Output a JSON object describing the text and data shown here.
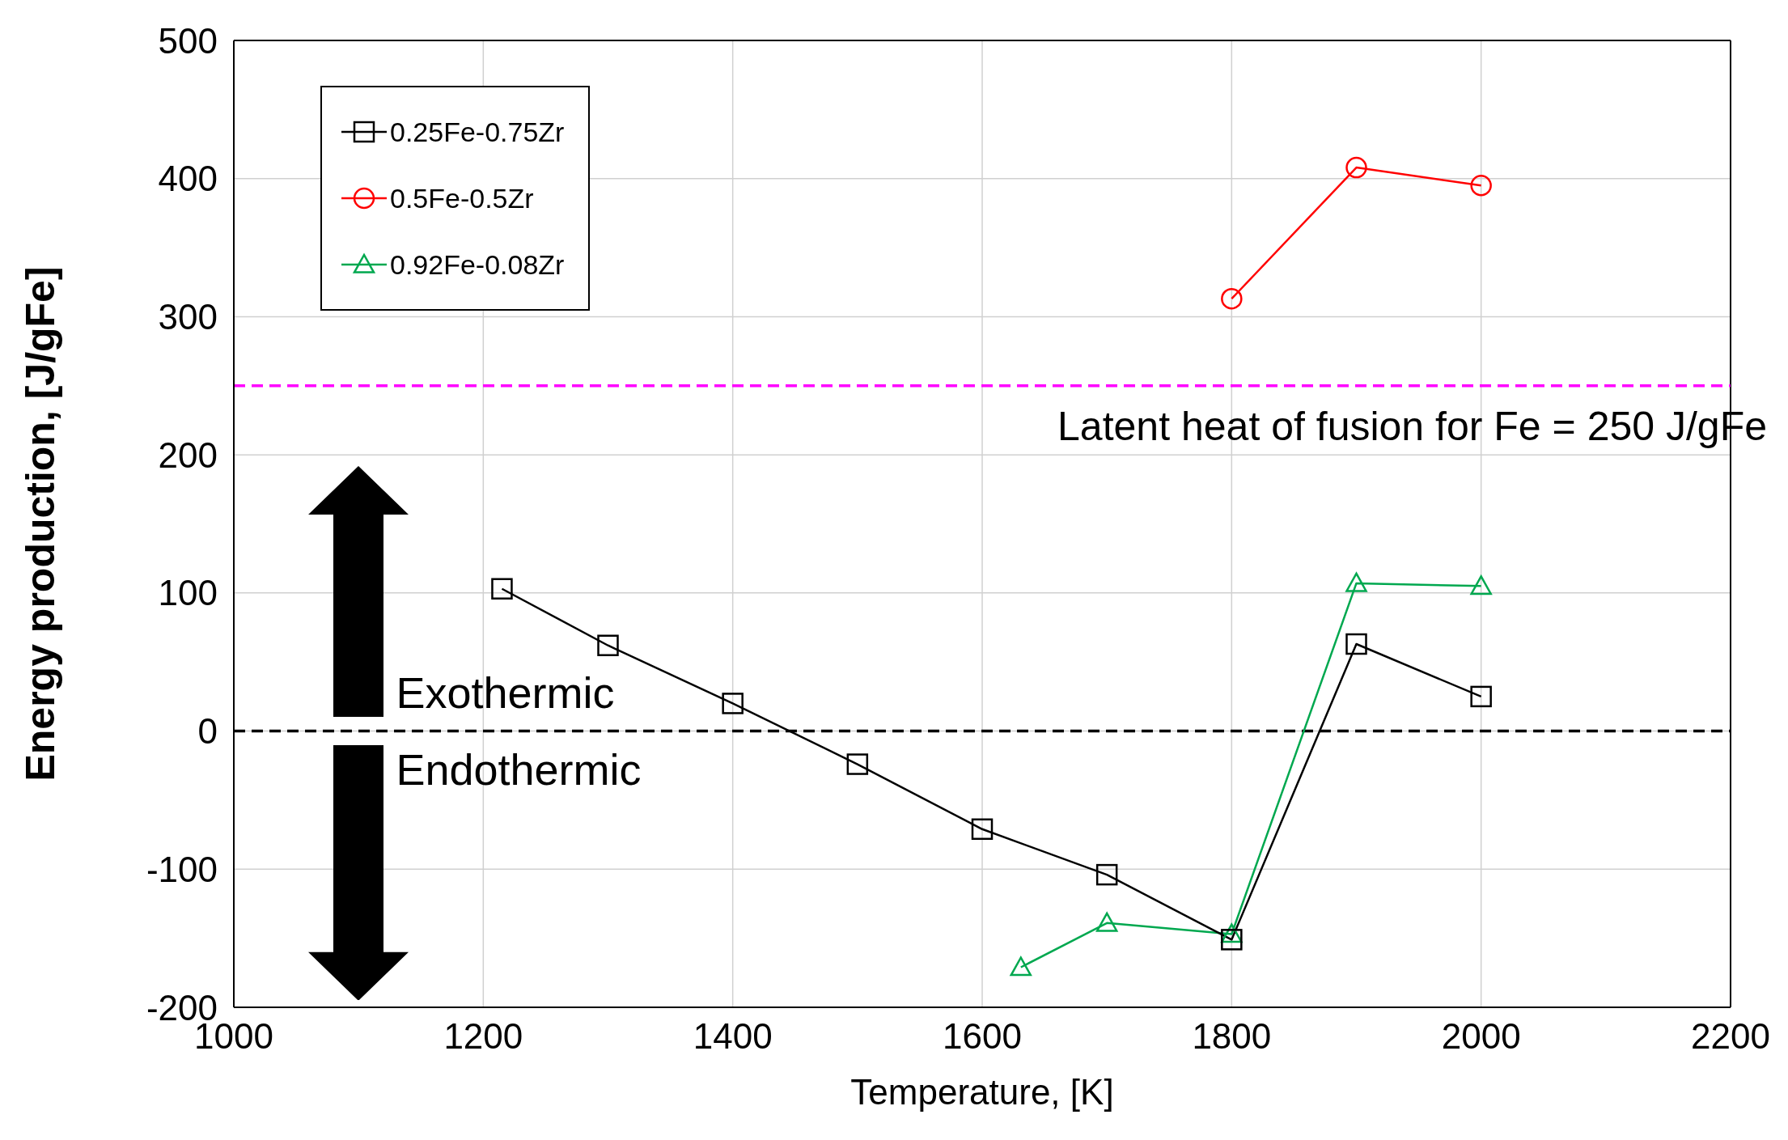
{
  "chart_data": {
    "type": "line",
    "xlabel": "Temperature, [K]",
    "ylabel": "Energy production, [J/gFe]",
    "xlim": [
      1000,
      2200
    ],
    "xticks": [
      1000,
      1200,
      1400,
      1600,
      1800,
      2000,
      2200
    ],
    "ylim": [
      -200,
      500
    ],
    "yticks": [
      -200,
      -100,
      0,
      100,
      200,
      300,
      400,
      500
    ],
    "grid": true,
    "legend": "top left",
    "series": [
      {
        "name": "0.25Fe-0.75Zr",
        "color": "#000000",
        "marker": "square",
        "x": [
          1215,
          1300,
          1400,
          1500,
          1600,
          1700,
          1800,
          1900,
          2000
        ],
        "values": [
          103,
          62,
          20,
          -24,
          -71,
          -104,
          -151,
          63,
          25
        ]
      },
      {
        "name": "0.5Fe-0.5Zr",
        "color": "#ff0000",
        "marker": "circle",
        "x": [
          1800,
          1900,
          2000
        ],
        "values": [
          313,
          408,
          395
        ]
      },
      {
        "name": "0.92Fe-0.08Zr",
        "color": "#00a84f",
        "marker": "triangle",
        "x": [
          1631,
          1700,
          1800,
          1900,
          2000
        ],
        "values": [
          -171,
          -139,
          -147,
          107,
          105
        ]
      }
    ],
    "ref_lines": [
      {
        "axis": "y",
        "value": 250,
        "label": "Latent heat of fusion for Fe = 250 J/gFe",
        "color": "#ff00ff",
        "line_style": "dashed"
      },
      {
        "axis": "y",
        "value": 0,
        "label": null,
        "color": "#000000",
        "line_style": "dashed"
      }
    ],
    "annotations": [
      "Exothermic",
      "Endothermic"
    ]
  }
}
